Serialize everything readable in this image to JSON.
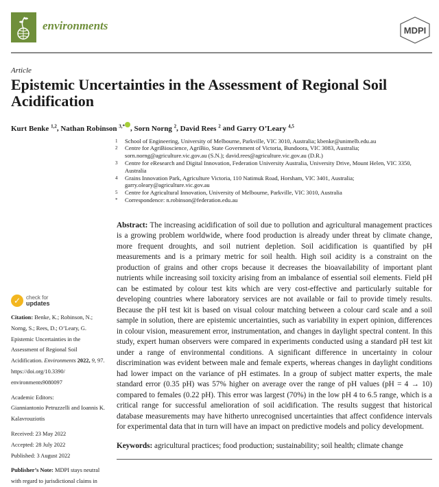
{
  "header": {
    "journal": "environments",
    "publisher": "MDPI",
    "brand_color": "#6f8f3a"
  },
  "article_type": "Article",
  "title": "Epistemic Uncertainties in the Assessment of Regional Soil Acidification",
  "authors": [
    {
      "name": "Kurt Benke",
      "sup": "1,2",
      "sep": ", "
    },
    {
      "name": "Nathan Robinson",
      "sup": "3,*",
      "sep": ", ",
      "orcid": true
    },
    {
      "name": "Sorn Norng",
      "sup": "2",
      "sep": ", "
    },
    {
      "name": "David Rees",
      "sup": "2",
      "sep": " and "
    },
    {
      "name": "Garry O’Leary",
      "sup": "4,5",
      "sep": ""
    }
  ],
  "affiliations": [
    {
      "n": "1",
      "text": "School of Engineering, University of Melbourne, Parkville, VIC 3010, Australia; kbenke@unimelb.edu.au"
    },
    {
      "n": "2",
      "text": "Centre for AgriBioscience, AgriBio, State Government of Victoria, Bundoora, VIC 3083, Australia; sorn.norng@agriculture.vic.gov.au (S.N.); david.rees@agriculture.vic.gov.au (D.R.)"
    },
    {
      "n": "3",
      "text": "Centre for eResearch and Digital Innovation, Federation University Australia, University Drive, Mount Helen, VIC 3350, Australia"
    },
    {
      "n": "4",
      "text": "Grains Innovation Park, Agriculture Victoria, 110 Natimuk Road, Horsham, VIC 3401, Australia; garry.oleary@agriculture.vic.gov.au"
    },
    {
      "n": "5",
      "text": "Centre for Agricultural Innovation, University of Melbourne, Parkville, VIC 3010, Australia"
    },
    {
      "n": "*",
      "text": "Correspondence: n.robinson@federation.edu.au"
    }
  ],
  "abstract": {
    "label": "Abstract:",
    "text": "The increasing acidification of soil due to pollution and agricultural management practices is a growing problem worldwide, where food production is already under threat by climate change, more frequent droughts, and soil nutrient depletion. Soil acidification is quantified by pH measurements and is a primary metric for soil health. High soil acidity is a constraint on the production of grains and other crops because it decreases the bioavailability of important plant nutrients while increasing soil toxicity arising from an imbalance of essential soil elements. Field pH can be estimated by colour test kits which are very cost-effective and particularly suitable for developing countries where laboratory services are not available or fail to provide timely results.  Because the pH test kit is based on visual colour matching between a colour card scale and a soil sample in solution, there are epistemic uncertainties, such as variability in expert opinion, differences in colour vision, measurement error, instrumentation, and changes in daylight spectral content. In this study, expert human observers were compared in experiments conducted using a standard pH test kit under a range of environmental conditions.  A significant difference in uncertainty in colour discrimination was evident between male and female experts, whereas changes in daylight conditions had lower impact on the variance of pH estimates.  In a group of subject matter experts, the male standard error (0.35 pH) was 57% higher on average over the range of pH values (pH = 4 → 10) compared to females (0.22 pH). This error was largest (70%) in the low pH 4 to 6.5 range, which is a critical range for successful amelioration of soil acidification. The results suggest that historical database measurements may have hitherto unrecognised uncertainties that affect confidence intervals for experimental data that in turn will have an impact on predictive models and policy development."
  },
  "keywords": {
    "label": "Keywords:",
    "text": "agricultural practices; food production; sustainability; soil health; climate change"
  },
  "sidebar": {
    "check_updates": {
      "line1": "check for",
      "line2": "updates"
    },
    "citation": {
      "label": "Citation:",
      "text1": "Benke, K.; Robinson, N.; Norng, S.; Rees, D.; O’Leary, G. Epistemic Uncertainties in the Assessment of Regional Soil Acidification.",
      "journal": "Environments",
      "year": "2022,",
      "volume": "9,",
      "rest": "97.  https://doi.org/10.3390/ environments9080097"
    },
    "editors_label": "Academic Editors:",
    "editors": "Gianniantonio Petruzzelli and Ioannis K. Kalavrouziotis",
    "received": "Received: 23 May 2022",
    "accepted": "Accepted: 28 July 2022",
    "published": "Published: 3 August 2022",
    "note_label": "Publisher’s Note:",
    "note": "MDPI stays neutral with regard to jurisdictional claims in"
  }
}
